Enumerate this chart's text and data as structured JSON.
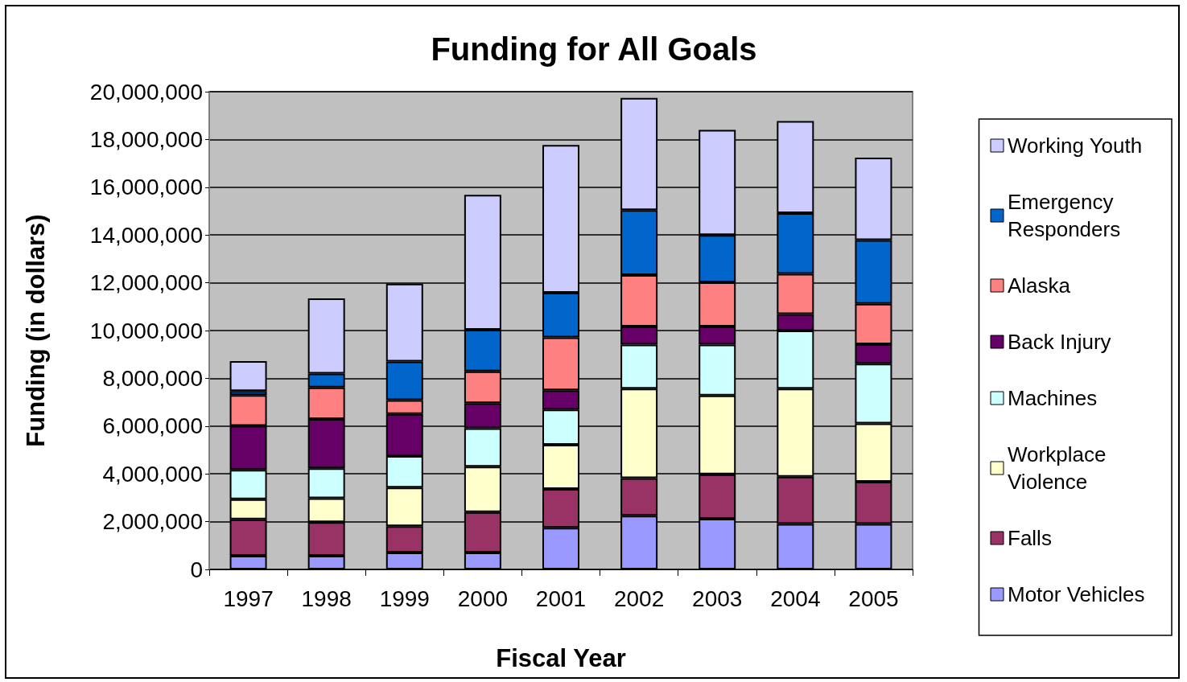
{
  "chart_data": {
    "type": "bar",
    "title": "Funding for All Goals",
    "xlabel": "Fiscal Year",
    "ylabel": "Funding (in dollars)",
    "categories": [
      "1997",
      "1998",
      "1999",
      "2000",
      "2001",
      "2002",
      "2003",
      "2004",
      "2005"
    ],
    "stacked": true,
    "ylim": [
      0,
      20000000
    ],
    "yticks": [
      0,
      {
        "value": 2000000,
        "label": "2,000,000"
      },
      {
        "value": 4000000,
        "label": "4,000,000"
      },
      {
        "value": 6000000,
        "label": "6,000,000"
      },
      {
        "value": 8000000,
        "label": "8,000,000"
      },
      {
        "value": 10000000,
        "label": "10,000,000"
      },
      {
        "value": 12000000,
        "label": "12,000,000"
      },
      {
        "value": 14000000,
        "label": "14,000,000"
      },
      {
        "value": 16000000,
        "label": "16,000,000"
      },
      {
        "value": 18000000,
        "label": "18,000,000"
      },
      {
        "value": 20000000,
        "label": "20,000,000"
      }
    ],
    "grid": "y",
    "legend": "right",
    "series": [
      {
        "name": "Motor Vehicles",
        "color": "#9999ff",
        "values": [
          570000,
          570000,
          710000,
          710000,
          1740000,
          2250000,
          2120000,
          1900000,
          1900000
        ]
      },
      {
        "name": "Falls",
        "color": "#993366",
        "values": [
          1530000,
          1410000,
          1100000,
          1690000,
          1630000,
          1570000,
          1860000,
          1980000,
          1770000
        ]
      },
      {
        "name": "Workplace Violence",
        "color": "#ffffcc",
        "values": [
          840000,
          1000000,
          1620000,
          1900000,
          1850000,
          3750000,
          3300000,
          3690000,
          2440000
        ]
      },
      {
        "name": "Machines",
        "color": "#ccffff",
        "values": [
          1230000,
          1250000,
          1320000,
          1610000,
          1470000,
          1840000,
          2130000,
          2430000,
          2500000
        ]
      },
      {
        "name": "Back Injury",
        "color": "#660066",
        "values": [
          1840000,
          2070000,
          1760000,
          1050000,
          810000,
          760000,
          760000,
          690000,
          820000
        ]
      },
      {
        "name": "Alaska",
        "color": "#ff8080",
        "values": [
          1290000,
          1320000,
          580000,
          1330000,
          2210000,
          2150000,
          1850000,
          1680000,
          1690000
        ]
      },
      {
        "name": "Emergency Responders",
        "color": "#0066cc",
        "values": [
          170000,
          580000,
          1610000,
          1740000,
          1870000,
          2720000,
          1980000,
          2550000,
          2670000
        ]
      },
      {
        "name": "Working Youth",
        "color": "#ccccff",
        "values": [
          1250000,
          3150000,
          3260000,
          5650000,
          6190000,
          4700000,
          4400000,
          3850000,
          3450000
        ]
      }
    ]
  }
}
